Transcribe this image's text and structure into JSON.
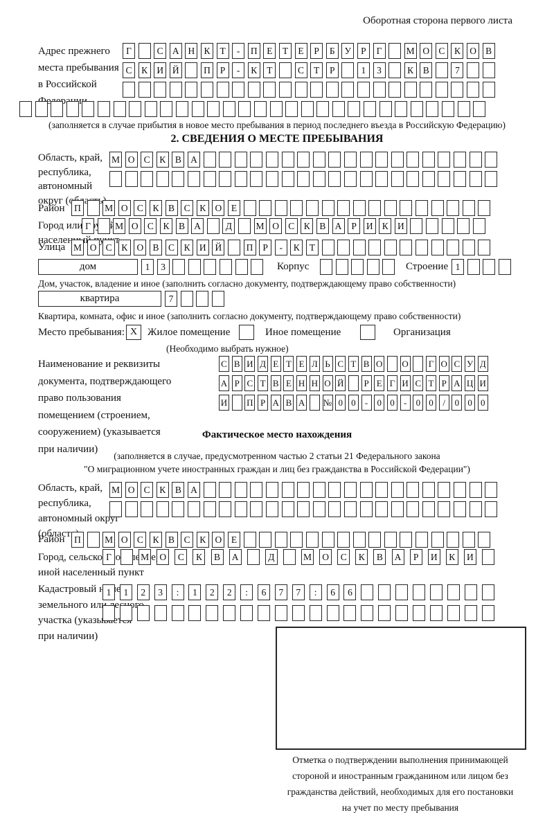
{
  "page": {
    "back_label": "Оборотная сторона первого листа"
  },
  "prev_address": {
    "label": "Адрес прежнего\nместа пребывания\nв Российской\nФедерации",
    "rows": [
      [
        "Г",
        "",
        "С",
        "А",
        "Н",
        "К",
        "Т",
        "-",
        "П",
        "Е",
        "Т",
        "Е",
        "Р",
        "Б",
        "У",
        "Р",
        "Г",
        "",
        "М",
        "О",
        "С",
        "К",
        "О",
        "В"
      ],
      [
        "С",
        "К",
        "И",
        "Й",
        "",
        "П",
        "Р",
        "-",
        "К",
        "Т",
        "",
        "С",
        "Т",
        "Р",
        "",
        "1",
        "3",
        "",
        "К",
        "В",
        "",
        "7",
        "",
        ""
      ],
      [
        "",
        "",
        "",
        "",
        "",
        "",
        "",
        "",
        "",
        "",
        "",
        "",
        "",
        "",
        "",
        "",
        "",
        "",
        "",
        "",
        "",
        "",
        "",
        ""
      ],
      [
        "",
        "",
        "",
        "",
        "",
        "",
        "",
        "",
        "",
        "",
        "",
        "",
        "",
        "",
        "",
        "",
        "",
        "",
        "",
        "",
        "",
        "",
        "",
        "",
        "",
        "",
        "",
        "",
        "",
        ""
      ]
    ],
    "note": "(заполняется в случае прибытия в новое место пребывания в период последнего въезда в Российскую Федерацию)"
  },
  "section2": {
    "title": "2. СВЕДЕНИЯ О МЕСТЕ ПРЕБЫВАНИЯ",
    "region_label": "Область, край,\nреспублика,\nавтономный\nокруг (область)",
    "region_rows": [
      [
        "М",
        "О",
        "С",
        "К",
        "В",
        "А",
        "",
        "",
        "",
        "",
        "",
        "",
        "",
        "",
        "",
        "",
        "",
        "",
        "",
        "",
        "",
        "",
        "",
        "",
        ""
      ],
      [
        "",
        "",
        "",
        "",
        "",
        "",
        "",
        "",
        "",
        "",
        "",
        "",
        "",
        "",
        "",
        "",
        "",
        "",
        "",
        "",
        "",
        "",
        "",
        "",
        ""
      ]
    ],
    "district_label": "Район",
    "district_row": [
      "П",
      "",
      "М",
      "О",
      "С",
      "К",
      "В",
      "С",
      "К",
      "О",
      "Е",
      "",
      "",
      "",
      "",
      "",
      "",
      "",
      "",
      "",
      "",
      "",
      "",
      "",
      "",
      "",
      ""
    ],
    "city_label": "Город или другой\nнаселенный пункт",
    "city_row": [
      "Г",
      "",
      "М",
      "О",
      "С",
      "К",
      "В",
      "А",
      "",
      "Д",
      "",
      "М",
      "О",
      "С",
      "К",
      "В",
      "А",
      "Р",
      "И",
      "К",
      "И",
      "",
      "",
      "",
      "",
      ""
    ],
    "street_label": "Улица",
    "street_row": [
      "М",
      "О",
      "С",
      "К",
      "О",
      "В",
      "С",
      "К",
      "И",
      "Й",
      "",
      "П",
      "Р",
      "-",
      "К",
      "Т",
      "",
      "",
      "",
      "",
      "",
      "",
      "",
      "",
      "",
      "",
      ""
    ],
    "house_label": "дом",
    "house_cells": [
      "1",
      "3",
      "",
      "",
      "",
      "",
      "",
      ""
    ],
    "korpus_label": "Корпус",
    "korpus_cells": [
      "",
      "",
      "",
      "",
      ""
    ],
    "stroenie_label": "Строение",
    "stroenie_cells": [
      "1",
      "",
      "",
      ""
    ],
    "house_note": "Дом, участок, владение и иное (заполнить согласно документу, подтверждающему право собственности)",
    "apartment_label": "квартира",
    "apartment_cells": [
      "7",
      "",
      "",
      ""
    ],
    "apartment_note": "Квартира, комната, офис и иное (заполнить согласно документу, подтверждающему право собственности)",
    "stay_type": {
      "label": "Место пребывания:",
      "options": [
        {
          "label": "Жилое помещение",
          "checked": "X"
        },
        {
          "label": "Иное помещение",
          "checked": ""
        },
        {
          "label": "Организация",
          "checked": ""
        }
      ],
      "note": "(Необходимо выбрать нужное)"
    },
    "doc_label": "Наименование и реквизиты\nдокумента, подтверждающего\nправо пользования\nпомещением (строением,\nсооружением) (указывается\nпри наличии)",
    "doc_rows": [
      [
        "С",
        "В",
        "И",
        "Д",
        "Е",
        "Т",
        "Е",
        "Л",
        "Ь",
        "С",
        "Т",
        "В",
        "О",
        "",
        "О",
        "",
        "Г",
        "О",
        "С",
        "У",
        "Д"
      ],
      [
        "А",
        "Р",
        "С",
        "Т",
        "В",
        "Е",
        "Н",
        "Н",
        "О",
        "Й",
        "",
        "Р",
        "Е",
        "Г",
        "И",
        "С",
        "Т",
        "Р",
        "А",
        "Ц",
        "И"
      ],
      [
        "И",
        "",
        "П",
        "Р",
        "А",
        "В",
        "А",
        "",
        "№",
        "0",
        "0",
        "-",
        "0",
        "0",
        "-",
        "0",
        "0",
        "/",
        "0",
        "0",
        "0"
      ]
    ]
  },
  "actual_location": {
    "title": "Фактическое место нахождения",
    "note1": "(заполняется в случае, предусмотренном частью 2 статьи 21 Федерального закона",
    "note2": "\"О миграционном учете иностранных граждан и лиц без гражданства в Российской Федерации\")",
    "region_label": "Область, край,\nреспублика,\nавтономный округ\n(область)",
    "region_rows": [
      [
        "М",
        "О",
        "С",
        "К",
        "В",
        "А",
        "",
        "",
        "",
        "",
        "",
        "",
        "",
        "",
        "",
        "",
        "",
        "",
        "",
        "",
        "",
        "",
        "",
        "",
        ""
      ],
      [
        "",
        "",
        "",
        "",
        "",
        "",
        "",
        "",
        "",
        "",
        "",
        "",
        "",
        "",
        "",
        "",
        "",
        "",
        "",
        "",
        "",
        "",
        "",
        "",
        ""
      ]
    ],
    "district_label": "Район",
    "district_row": [
      "П",
      "",
      "М",
      "О",
      "С",
      "К",
      "В",
      "С",
      "К",
      "О",
      "Е",
      "",
      "",
      "",
      "",
      "",
      "",
      "",
      "",
      "",
      "",
      "",
      "",
      "",
      "",
      "",
      ""
    ],
    "city_label": "Город, сельское поселение,\nиной населенный пункт",
    "city_row": [
      "Г",
      "",
      "М",
      "О",
      "С",
      "К",
      "В",
      "А",
      "",
      "Д",
      "",
      "М",
      "О",
      "С",
      "К",
      "В",
      "А",
      "Р",
      "И",
      "К",
      "И",
      ""
    ],
    "cadastral_label": "Кадастровый номер\nземельного или лесного\nучастка (указывается\nпри наличии)",
    "cadastral_rows": [
      [
        "1",
        "1",
        "2",
        "3",
        ":",
        "1",
        "2",
        "2",
        ":",
        "6",
        "7",
        "7",
        ":",
        "6",
        "6",
        "",
        "",
        "",
        "",
        "",
        "",
        "",
        ""
      ],
      [
        "",
        "",
        "",
        "",
        "",
        "",
        "",
        "",
        "",
        "",
        "",
        "",
        "",
        "",
        "",
        "",
        "",
        "",
        "",
        "",
        "",
        "",
        ""
      ]
    ],
    "stamp_note": "Отметка о подтверждении выполнения принимающей\nстороной и иностранным гражданином или лицом без\nгражданства действий, необходимых для его постановки\nна учет по месту пребывания"
  }
}
